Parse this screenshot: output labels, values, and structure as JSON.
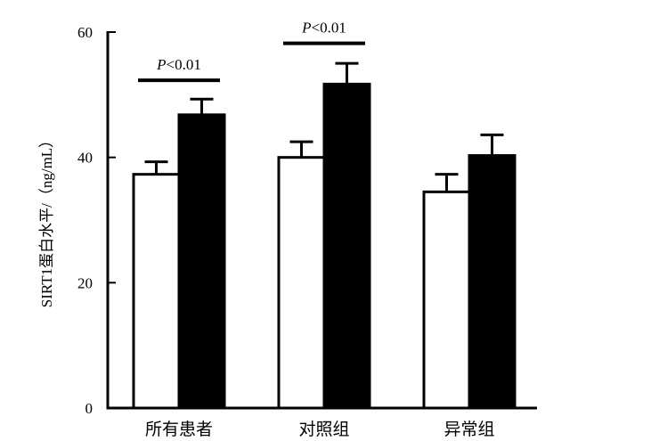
{
  "chart_data": {
    "type": "bar",
    "categories": [
      "所有患者",
      "对照组",
      "异常组"
    ],
    "series": [
      {
        "fill": "#ffffff",
        "values": [
          37.3,
          40.0,
          34.5
        ],
        "errors": [
          2.0,
          2.5,
          2.8
        ]
      },
      {
        "fill": "#000000",
        "values": [
          46.8,
          51.7,
          40.3
        ],
        "errors": [
          2.5,
          3.3,
          3.3
        ]
      }
    ],
    "ylabel": "SIRT1蛋白水平/（ng/mL）",
    "ylim": [
      0,
      60
    ],
    "yticks": [
      0,
      20,
      40,
      60
    ],
    "grid": false,
    "annotations": [
      {
        "category_index": 0,
        "y": 52.3,
        "text_italic": "P",
        "text_rest": "<0.01"
      },
      {
        "category_index": 1,
        "y": 58.2,
        "text_italic": "P",
        "text_rest": "<0.01"
      }
    ]
  }
}
